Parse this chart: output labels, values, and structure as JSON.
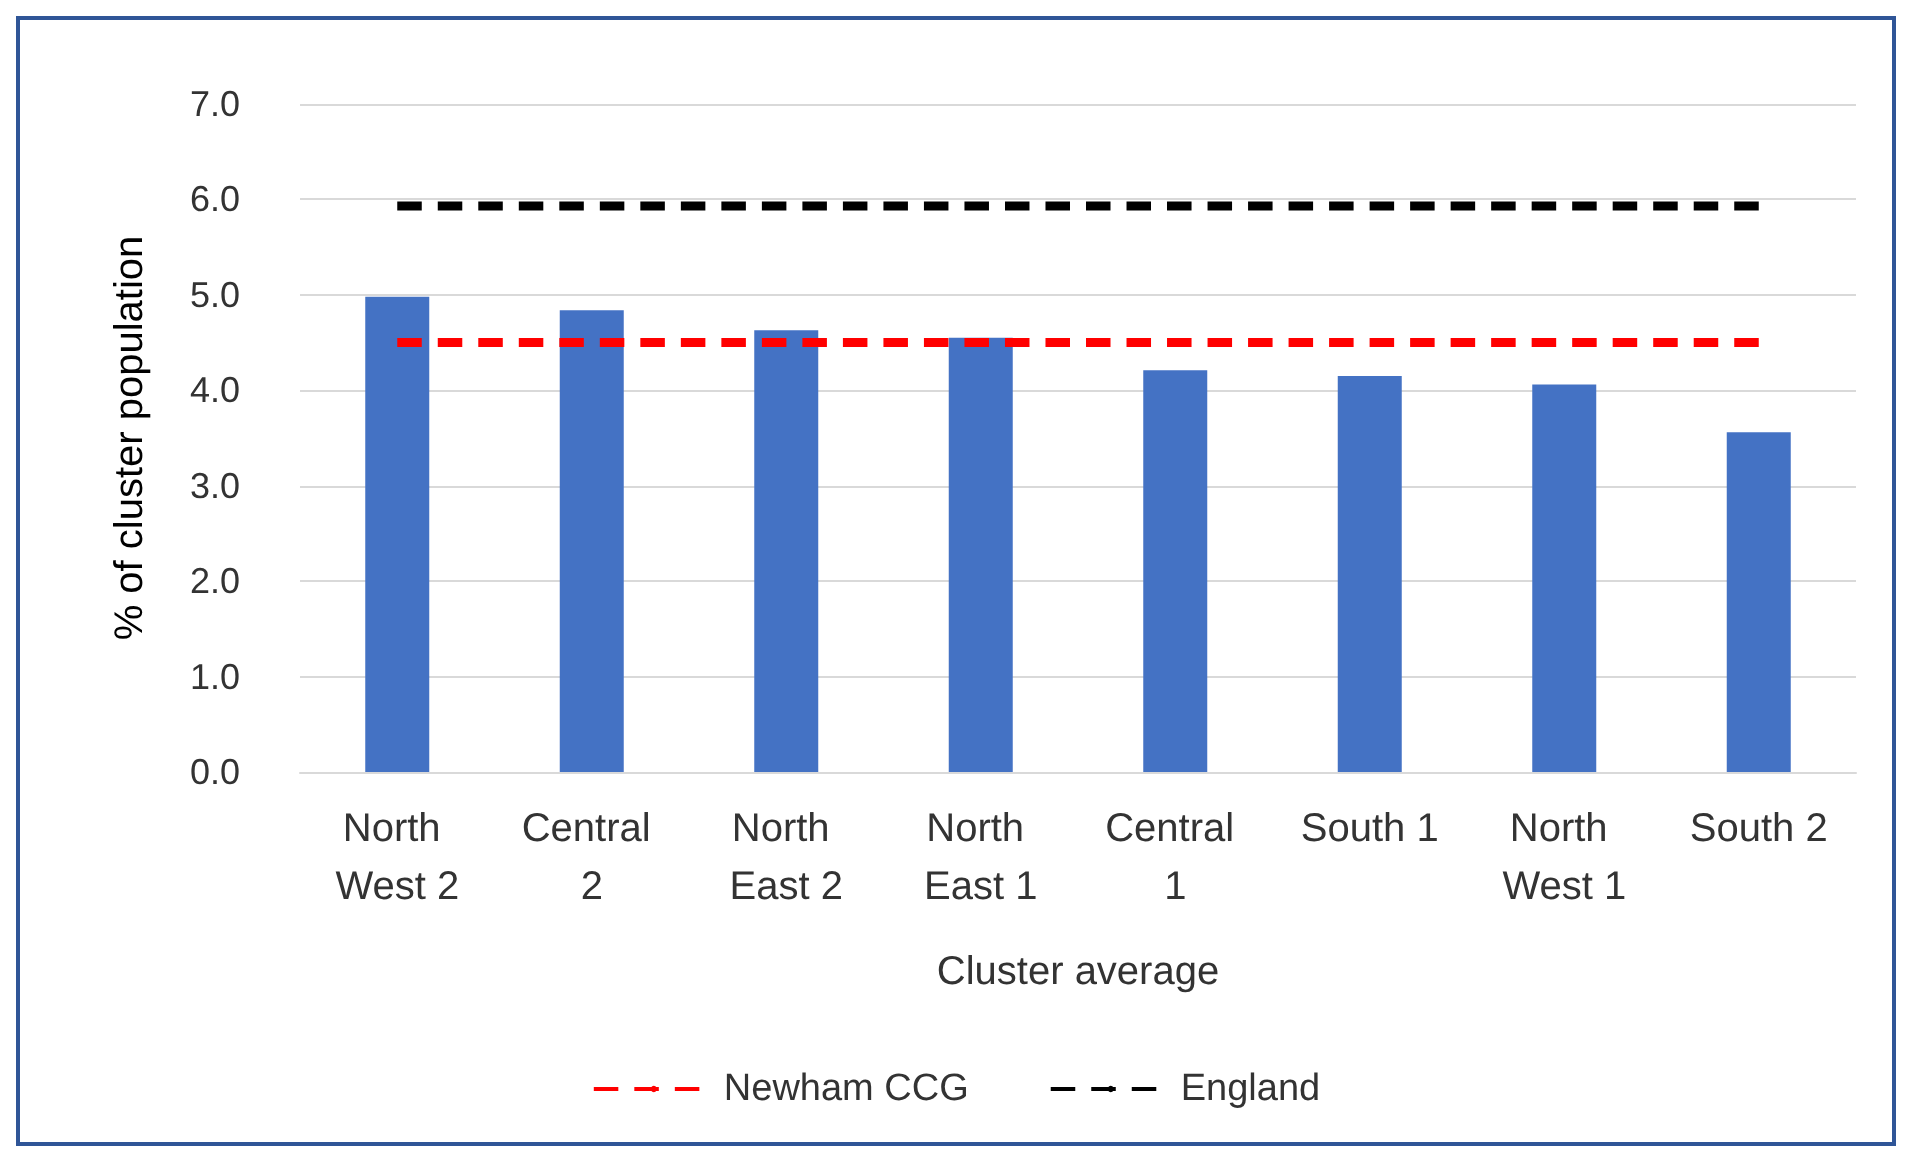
{
  "chart_data": {
    "type": "bar",
    "xlabel": "Cluster average",
    "ylabel": "% of cluster population",
    "categories": [
      "North West 2",
      "Central 2",
      "North East 2",
      "North East 1",
      "Central 1",
      "South 1",
      "North West 1",
      "South 2"
    ],
    "series": [
      {
        "color": "#4472c4",
        "values": [
          4.98,
          4.84,
          4.63,
          4.55,
          4.21,
          4.15,
          4.06,
          3.56
        ]
      },
      {
        "type": "line",
        "name": "Newham CCG",
        "color": "#ff0000",
        "line_style": "dashed",
        "marker": "none",
        "values": [
          4.5,
          4.5,
          4.5,
          4.5,
          4.5,
          4.5,
          4.5,
          4.5
        ]
      },
      {
        "type": "line",
        "name": "England",
        "color": "#000000",
        "line_style": "dashed",
        "marker": "none",
        "values": [
          5.93,
          5.93,
          5.93,
          5.93,
          5.93,
          5.93,
          5.93,
          5.93
        ]
      }
    ],
    "ylim": [
      0,
      7
    ],
    "yticks": [
      {
        "value": 0,
        "label": "0.0"
      },
      {
        "value": 1,
        "label": "1.0"
      },
      {
        "value": 2,
        "label": "2.0"
      },
      {
        "value": 3,
        "label": "3.0"
      },
      {
        "value": 4,
        "label": "4.0"
      },
      {
        "value": 5,
        "label": "5.0"
      },
      {
        "value": 6,
        "label": "6.0"
      },
      {
        "value": 7,
        "label": "7.0"
      }
    ],
    "grid": "y",
    "legend": "bottom"
  }
}
